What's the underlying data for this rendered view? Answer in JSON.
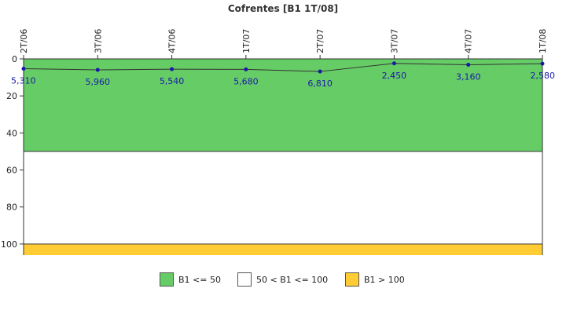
{
  "chart_data": {
    "type": "line",
    "title": "Cofrentes [B1 1T/08]",
    "categories": [
      "2T/06",
      "3T/06",
      "4T/06",
      "1T/07",
      "2T/07",
      "3T/07",
      "4T/07",
      "1T/08"
    ],
    "series": [
      {
        "values": [
          5.31,
          5.96,
          5.54,
          5.68,
          6.81,
          2.45,
          3.16,
          2.58
        ],
        "labels": [
          "5,310",
          "5,960",
          "5,540",
          "5,680",
          "6,810",
          "2,450",
          "3,160",
          "2,580"
        ]
      }
    ],
    "ylim": [
      0,
      106
    ],
    "y_inverted": true,
    "y_ticks": [
      0,
      20,
      40,
      60,
      80,
      100
    ],
    "bands": [
      {
        "from": 0,
        "to": 50,
        "color": "#66cc66",
        "label": "B1 <= 50"
      },
      {
        "from": 50,
        "to": 100,
        "color": "#ffffff",
        "label": "50 < B1 <= 100"
      },
      {
        "from": 100,
        "to": 106,
        "color": "#ffcc33",
        "label": "B1 > 100"
      }
    ],
    "legend_position": "bottom",
    "line_color": "#333333",
    "marker_color": "#1a1aa8"
  }
}
